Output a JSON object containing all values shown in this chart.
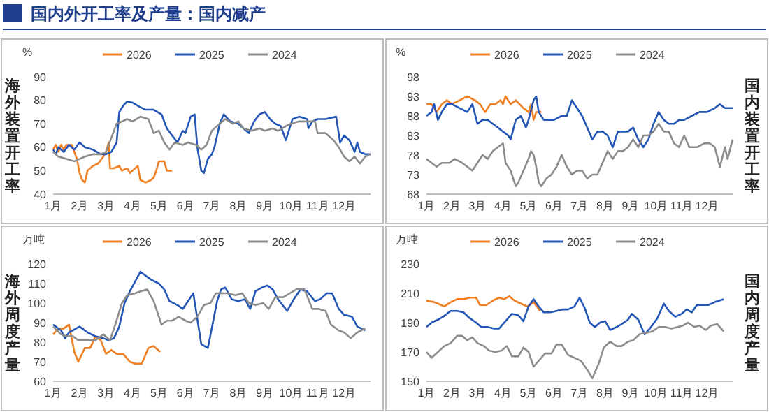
{
  "chart_data": [
    {
      "type": "line",
      "title": "国内外开工率及产量：国内减产",
      "ylabel": "海外装置开工率",
      "annotations": [
        "%"
      ],
      "legend": "top",
      "xlim": [
        1,
        13
      ],
      "xticks": [
        {
          "value": 1,
          "label": "1月"
        },
        {
          "value": 2,
          "label": "2月"
        },
        {
          "value": 3,
          "label": "3月"
        },
        {
          "value": 4,
          "label": "4月"
        },
        {
          "value": 5,
          "label": "5月"
        },
        {
          "value": 6,
          "label": "6月"
        },
        {
          "value": 7,
          "label": "7月"
        },
        {
          "value": 8,
          "label": "8月"
        },
        {
          "value": 9,
          "label": "9月"
        },
        {
          "value": 10,
          "label": "10月"
        },
        {
          "value": 11,
          "label": "11月"
        },
        {
          "value": 12,
          "label": "12月"
        }
      ],
      "ylim": [
        40,
        90
      ],
      "yticks": [
        40,
        50,
        60,
        70,
        80,
        90
      ],
      "series": [
        {
          "name": "2026",
          "color": "#f07f22",
          "x": [
            1,
            1.1,
            1.2,
            1.3,
            1.4,
            1.5,
            1.7,
            1.8,
            1.9,
            2.0,
            2.1,
            2.2,
            2.3,
            2.5,
            2.7,
            2.9,
            3.0,
            3.1,
            3.15,
            3.3,
            3.5,
            3.6,
            3.8,
            3.9,
            4.0,
            4.2,
            4.3,
            4.5,
            4.7,
            4.8,
            4.9,
            5.0,
            5.2,
            5.3,
            5.5
          ],
          "values": [
            59,
            61,
            58,
            61,
            59,
            61,
            61,
            58,
            55,
            49,
            46,
            45,
            50,
            52,
            53,
            56,
            58,
            62,
            51,
            51,
            52,
            50,
            51,
            49,
            50,
            52,
            46,
            45,
            46,
            47,
            50,
            54,
            54,
            50,
            50
          ]
        },
        {
          "name": "2025",
          "color": "#2457b5",
          "x": [
            1,
            1.1,
            1.2,
            1.4,
            1.6,
            1.8,
            2.0,
            2.2,
            2.5,
            2.8,
            3.0,
            3.2,
            3.4,
            3.5,
            3.67,
            3.8,
            4.0,
            4.3,
            4.5,
            4.8,
            5.1,
            5.3,
            5.5,
            5.7,
            5.9,
            6.0,
            6.2,
            6.35,
            6.45,
            6.6,
            6.7,
            6.85,
            7.0,
            7.1,
            7.3,
            7.45,
            7.7,
            8.0,
            8.2,
            8.4,
            8.6,
            8.8,
            9.0,
            9.2,
            9.4,
            9.6,
            9.8,
            10.05,
            10.3,
            10.6,
            10.65,
            10.8,
            11.0,
            11.3,
            11.7,
            11.85,
            12.0,
            12.2,
            12.4,
            12.5,
            12.6,
            12.8,
            13
          ],
          "values": [
            59,
            57,
            60,
            58,
            61,
            59,
            62,
            60,
            59,
            57,
            57,
            58,
            62,
            75,
            78,
            79.5,
            79,
            77,
            76,
            76,
            74,
            68,
            65,
            62,
            67,
            66,
            73,
            74,
            60,
            50,
            49,
            55,
            57,
            60,
            70,
            74,
            71,
            70,
            68,
            66,
            71,
            74,
            75,
            72,
            70,
            69,
            63,
            72,
            73,
            72,
            68,
            71,
            72,
            72,
            73,
            62,
            65,
            63,
            58,
            62,
            58,
            57,
            57
          ]
        },
        {
          "name": "2024",
          "color": "#8c8c8c",
          "x": [
            1,
            1.2,
            1.5,
            1.8,
            2.0,
            2.2,
            2.5,
            2.8,
            3.0,
            3.2,
            3.4,
            3.6,
            3.8,
            4.0,
            4.3,
            4.6,
            4.8,
            5.0,
            5.2,
            5.4,
            5.6,
            5.9,
            6.1,
            6.4,
            6.6,
            6.8,
            7.0,
            7.2,
            7.5,
            7.8,
            8.0,
            8.2,
            8.5,
            8.8,
            9.0,
            9.3,
            9.5,
            9.8,
            10.0,
            10.3,
            10.6,
            10.9,
            11.0,
            11.3,
            11.6,
            11.8,
            12.0,
            12.2,
            12.4,
            12.6,
            12.8,
            13
          ],
          "values": [
            58,
            56,
            55,
            54,
            55,
            56,
            57,
            57,
            58,
            64,
            70,
            71,
            72,
            71,
            73,
            72,
            66,
            67,
            62,
            59,
            62,
            61,
            62,
            61,
            59,
            61,
            67,
            69,
            72,
            70,
            71,
            68,
            67,
            68,
            67,
            68,
            67,
            69,
            70,
            71,
            71,
            71,
            66,
            66,
            63,
            60,
            56,
            54,
            56,
            53,
            56,
            57
          ]
        }
      ]
    },
    {
      "type": "line",
      "ylabel": "国内装置开工率",
      "annotations": [
        "%"
      ],
      "legend": "top",
      "xlim": [
        1,
        13
      ],
      "xticks": [
        {
          "value": 1,
          "label": "1月"
        },
        {
          "value": 2,
          "label": "2月"
        },
        {
          "value": 3,
          "label": "3月"
        },
        {
          "value": 4,
          "label": "4月"
        },
        {
          "value": 5,
          "label": "5月"
        },
        {
          "value": 6,
          "label": "6月"
        },
        {
          "value": 7,
          "label": "7月"
        },
        {
          "value": 8,
          "label": "8月"
        },
        {
          "value": 9,
          "label": "9月"
        },
        {
          "value": 10,
          "label": "10月"
        },
        {
          "value": 11,
          "label": "11月"
        },
        {
          "value": 12,
          "label": "12月"
        }
      ],
      "ylim": [
        68,
        98
      ],
      "yticks": [
        68,
        73,
        78,
        83,
        88,
        93,
        98
      ],
      "series": [
        {
          "name": "2026",
          "color": "#f07f22",
          "x": [
            1,
            1.2,
            1.4,
            1.6,
            1.8,
            2.0,
            2.3,
            2.6,
            2.9,
            3.1,
            3.3,
            3.5,
            3.7,
            3.9,
            4.0,
            4.1,
            4.3,
            4.5,
            4.8,
            5.0,
            5.1,
            5.2,
            5.3,
            5.5
          ],
          "values": [
            91,
            91,
            89,
            91,
            92,
            91,
            92,
            93,
            92,
            91,
            89,
            91,
            91,
            92,
            91,
            93,
            91,
            92,
            90,
            89,
            91,
            87,
            89,
            89
          ]
        },
        {
          "name": "2025",
          "color": "#2457b5",
          "x": [
            1,
            1.2,
            1.3,
            1.45,
            1.6,
            1.8,
            2.0,
            2.3,
            2.6,
            2.8,
            3.0,
            3.2,
            3.4,
            3.6,
            3.8,
            4.0,
            4.2,
            4.3,
            4.5,
            4.7,
            4.9,
            5.0,
            5.2,
            5.3,
            5.4,
            5.6,
            5.8,
            6.0,
            6.3,
            6.5,
            6.7,
            6.9,
            7.1,
            7.3,
            7.5,
            7.7,
            7.9,
            8.1,
            8.3,
            8.5,
            8.7,
            8.9,
            9.1,
            9.3,
            9.5,
            9.7,
            9.9,
            10.1,
            10.3,
            10.5,
            10.7,
            10.9,
            11.1,
            11.4,
            11.7,
            12.0,
            12.3,
            12.5,
            12.7,
            13
          ],
          "values": [
            88,
            89,
            91,
            87,
            89,
            91,
            91,
            90,
            89,
            91,
            86,
            87,
            87,
            86,
            85,
            84,
            83,
            82,
            87,
            88,
            85,
            87,
            92,
            93,
            89,
            87,
            87,
            87,
            88,
            88,
            92,
            90,
            88,
            85,
            82,
            84,
            84,
            83,
            80,
            84,
            84,
            84,
            85,
            82,
            80,
            82,
            86,
            89,
            87,
            86,
            86,
            87,
            87,
            88,
            89,
            89,
            90,
            91,
            90,
            90
          ]
        },
        {
          "name": "2024",
          "color": "#8c8c8c",
          "x": [
            1,
            1.2,
            1.4,
            1.6,
            1.9,
            2.1,
            2.4,
            2.6,
            2.8,
            3.0,
            3.2,
            3.4,
            3.6,
            3.8,
            4.0,
            4.1,
            4.3,
            4.5,
            4.6,
            4.8,
            5.0,
            5.1,
            5.2,
            5.3,
            5.4,
            5.5,
            5.7,
            5.9,
            6.1,
            6.3,
            6.5,
            6.7,
            6.9,
            7.1,
            7.3,
            7.5,
            7.7,
            7.9,
            8.1,
            8.3,
            8.5,
            8.7,
            8.9,
            9.1,
            9.3,
            9.5,
            9.7,
            9.9,
            10.1,
            10.3,
            10.5,
            10.7,
            10.9,
            11.1,
            11.3,
            11.6,
            11.9,
            12.1,
            12.3,
            12.5,
            12.7,
            12.8,
            13
          ],
          "values": [
            77,
            76,
            75,
            76,
            76,
            77,
            76,
            75,
            74,
            76,
            78,
            77,
            79,
            80,
            81,
            76,
            74,
            70,
            71,
            74,
            77,
            79,
            78,
            75,
            71,
            70,
            72,
            73,
            75,
            78,
            75,
            73,
            74,
            74,
            72,
            73,
            73,
            76,
            79,
            77,
            79,
            79,
            80,
            82,
            80,
            83,
            83,
            84,
            86,
            84,
            84,
            81,
            80,
            83,
            80,
            80,
            81,
            81,
            80,
            75,
            80,
            77,
            82
          ]
        }
      ]
    },
    {
      "type": "line",
      "ylabel": "海外周度产量",
      "annotations": [
        "万吨"
      ],
      "legend": "top",
      "xlim": [
        1,
        13
      ],
      "xticks": [
        {
          "value": 1,
          "label": "1月"
        },
        {
          "value": 2,
          "label": "2月"
        },
        {
          "value": 3,
          "label": "3月"
        },
        {
          "value": 4,
          "label": "4月"
        },
        {
          "value": 5,
          "label": "5月"
        },
        {
          "value": 6,
          "label": "6月"
        },
        {
          "value": 7,
          "label": "7月"
        },
        {
          "value": 8,
          "label": "8月"
        },
        {
          "value": 9,
          "label": "9月"
        },
        {
          "value": 10,
          "label": "10月"
        },
        {
          "value": 11,
          "label": "11月"
        },
        {
          "value": 12,
          "label": "12月"
        }
      ],
      "ylim": [
        60,
        120
      ],
      "yticks": [
        60,
        70,
        80,
        90,
        100,
        110,
        120
      ],
      "series": [
        {
          "name": "2026",
          "color": "#f07f22",
          "x": [
            1,
            1.2,
            1.4,
            1.6,
            1.8,
            1.95,
            2.2,
            2.4,
            2.6,
            2.8,
            3.0,
            3.2,
            3.4,
            3.65,
            3.9,
            4.1,
            4.35,
            4.6,
            4.8,
            5.05
          ],
          "values": [
            84,
            87,
            87,
            89,
            75,
            70,
            77,
            77,
            83,
            81,
            74,
            76,
            74,
            74,
            70,
            69,
            69,
            77,
            78,
            75
          ]
        },
        {
          "name": "2025",
          "color": "#2457b5",
          "x": [
            1,
            1.3,
            1.45,
            1.6,
            2.0,
            2.3,
            2.6,
            2.9,
            3.1,
            3.3,
            3.5,
            3.7,
            3.9,
            4.1,
            4.3,
            4.5,
            4.7,
            5.0,
            5.2,
            5.4,
            5.7,
            5.9,
            6.3,
            6.6,
            6.85,
            7.2,
            7.35,
            7.5,
            7.75,
            8.0,
            8.25,
            8.45,
            8.65,
            8.9,
            9.1,
            9.3,
            9.5,
            9.85,
            10.1,
            10.35,
            10.6,
            10.9,
            11.1,
            11.35,
            11.55,
            11.8,
            12.0,
            12.3,
            12.5,
            12.8
          ],
          "values": [
            89,
            86,
            82,
            85,
            88,
            85,
            83,
            82,
            81,
            82,
            88,
            100,
            106,
            111,
            116,
            114,
            112,
            110,
            107,
            101,
            99,
            97,
            105,
            79,
            77,
            101,
            107,
            108,
            102,
            101,
            102,
            97,
            106,
            108,
            109,
            107,
            102,
            96,
            102,
            107,
            106,
            101,
            102,
            105,
            105,
            97,
            94,
            93,
            88,
            86
          ]
        },
        {
          "name": "2024",
          "color": "#8c8c8c",
          "x": [
            1,
            1.3,
            1.5,
            1.75,
            1.95,
            2.3,
            2.6,
            2.9,
            3.15,
            3.35,
            3.6,
            3.8,
            4.1,
            4.3,
            4.55,
            4.8,
            5.1,
            5.3,
            5.5,
            5.75,
            6.0,
            6.2,
            6.45,
            6.7,
            6.95,
            7.15,
            7.4,
            7.6,
            7.9,
            8.15,
            8.4,
            8.65,
            8.95,
            9.15,
            9.4,
            9.7,
            9.95,
            10.2,
            10.5,
            10.8,
            11.05,
            11.3,
            11.5,
            11.8,
            12.0,
            12.25,
            12.5,
            12.8
          ],
          "values": [
            88,
            84,
            83,
            83,
            81,
            81,
            81,
            84,
            81,
            89,
            100,
            104,
            105,
            106,
            107,
            101,
            89,
            91,
            91,
            93,
            91,
            90,
            93,
            99,
            100,
            105,
            105,
            105,
            104,
            105,
            100,
            99,
            100,
            97,
            103,
            103,
            105,
            107,
            107,
            97,
            97,
            96,
            89,
            86,
            85,
            82,
            85,
            87
          ]
        }
      ]
    },
    {
      "type": "line",
      "ylabel": "国内周度产量",
      "annotations": [
        "万吨"
      ],
      "legend": "top",
      "xlim": [
        1,
        13
      ],
      "xticks": [
        {
          "value": 1,
          "label": "1月"
        },
        {
          "value": 2,
          "label": "2月"
        },
        {
          "value": 3,
          "label": "3月"
        },
        {
          "value": 4,
          "label": "4月"
        },
        {
          "value": 5,
          "label": "5月"
        },
        {
          "value": 6,
          "label": "6月"
        },
        {
          "value": 7,
          "label": "7月"
        },
        {
          "value": 8,
          "label": "8月"
        },
        {
          "value": 9,
          "label": "9月"
        },
        {
          "value": 10,
          "label": "10月"
        },
        {
          "value": 11,
          "label": "11月"
        },
        {
          "value": 12,
          "label": "12月"
        }
      ],
      "ylim": [
        150,
        230
      ],
      "yticks": [
        150,
        170,
        190,
        210,
        230
      ],
      "series": [
        {
          "name": "2026",
          "color": "#f07f22",
          "x": [
            1,
            1.3,
            1.45,
            1.7,
            1.95,
            2.2,
            2.45,
            2.7,
            2.95,
            3.1,
            3.35,
            3.6,
            3.85,
            4.05,
            4.25,
            4.45,
            4.7,
            4.95,
            5.2,
            5.45
          ],
          "values": [
            205,
            204,
            203,
            201,
            204,
            206,
            206,
            207,
            207,
            202,
            202,
            205,
            207,
            206,
            208,
            205,
            203,
            201,
            204,
            198
          ]
        },
        {
          "name": "2025",
          "color": "#2457b5",
          "x": [
            1,
            1.2,
            1.45,
            1.65,
            1.95,
            2.2,
            2.45,
            2.7,
            2.95,
            3.15,
            3.4,
            3.65,
            3.85,
            4.1,
            4.35,
            4.6,
            4.8,
            5.0,
            5.2,
            5.4,
            5.6,
            5.85,
            6.1,
            6.35,
            6.55,
            6.8,
            7.0,
            7.2,
            7.4,
            7.6,
            7.8,
            8.0,
            8.2,
            8.45,
            8.65,
            8.9,
            9.05,
            9.3,
            9.55,
            9.8,
            10.05,
            10.3,
            10.5,
            10.75,
            11.0,
            11.2,
            11.4,
            11.6,
            11.85,
            12.05,
            12.3,
            12.65
          ],
          "values": [
            187,
            190,
            192,
            194,
            198,
            198,
            197,
            193,
            190,
            187,
            187,
            186,
            186,
            191,
            196,
            195,
            191,
            201,
            206,
            201,
            197,
            197,
            198,
            199,
            199,
            201,
            207,
            200,
            190,
            187,
            190,
            191,
            185,
            187,
            189,
            192,
            196,
            192,
            182,
            187,
            193,
            203,
            198,
            194,
            196,
            199,
            197,
            202,
            202,
            202,
            204,
            206
          ]
        },
        {
          "name": "2024",
          "color": "#8c8c8c",
          "x": [
            1,
            1.2,
            1.45,
            1.7,
            1.95,
            2.2,
            2.4,
            2.6,
            2.8,
            3.0,
            3.25,
            3.45,
            3.7,
            3.95,
            4.15,
            4.35,
            4.6,
            4.8,
            5.0,
            5.2,
            5.45,
            5.65,
            5.9,
            6.1,
            6.3,
            6.55,
            6.8,
            7.05,
            7.3,
            7.5,
            7.75,
            7.95,
            8.2,
            8.45,
            8.65,
            8.9,
            9.1,
            9.35,
            9.6,
            9.85,
            10.1,
            10.35,
            10.6,
            10.85,
            11.05,
            11.25,
            11.5,
            11.7,
            11.95,
            12.15,
            12.4,
            12.65
          ],
          "values": [
            170,
            166,
            170,
            174,
            176,
            181,
            181,
            178,
            180,
            176,
            174,
            171,
            170,
            171,
            174,
            167,
            167,
            173,
            170,
            160,
            165,
            169,
            169,
            175,
            175,
            168,
            166,
            164,
            158,
            152,
            162,
            173,
            177,
            174,
            174,
            177,
            178,
            182,
            183,
            184,
            187,
            187,
            186,
            187,
            188,
            190,
            187,
            188,
            185,
            188,
            189,
            184
          ]
        }
      ]
    }
  ]
}
